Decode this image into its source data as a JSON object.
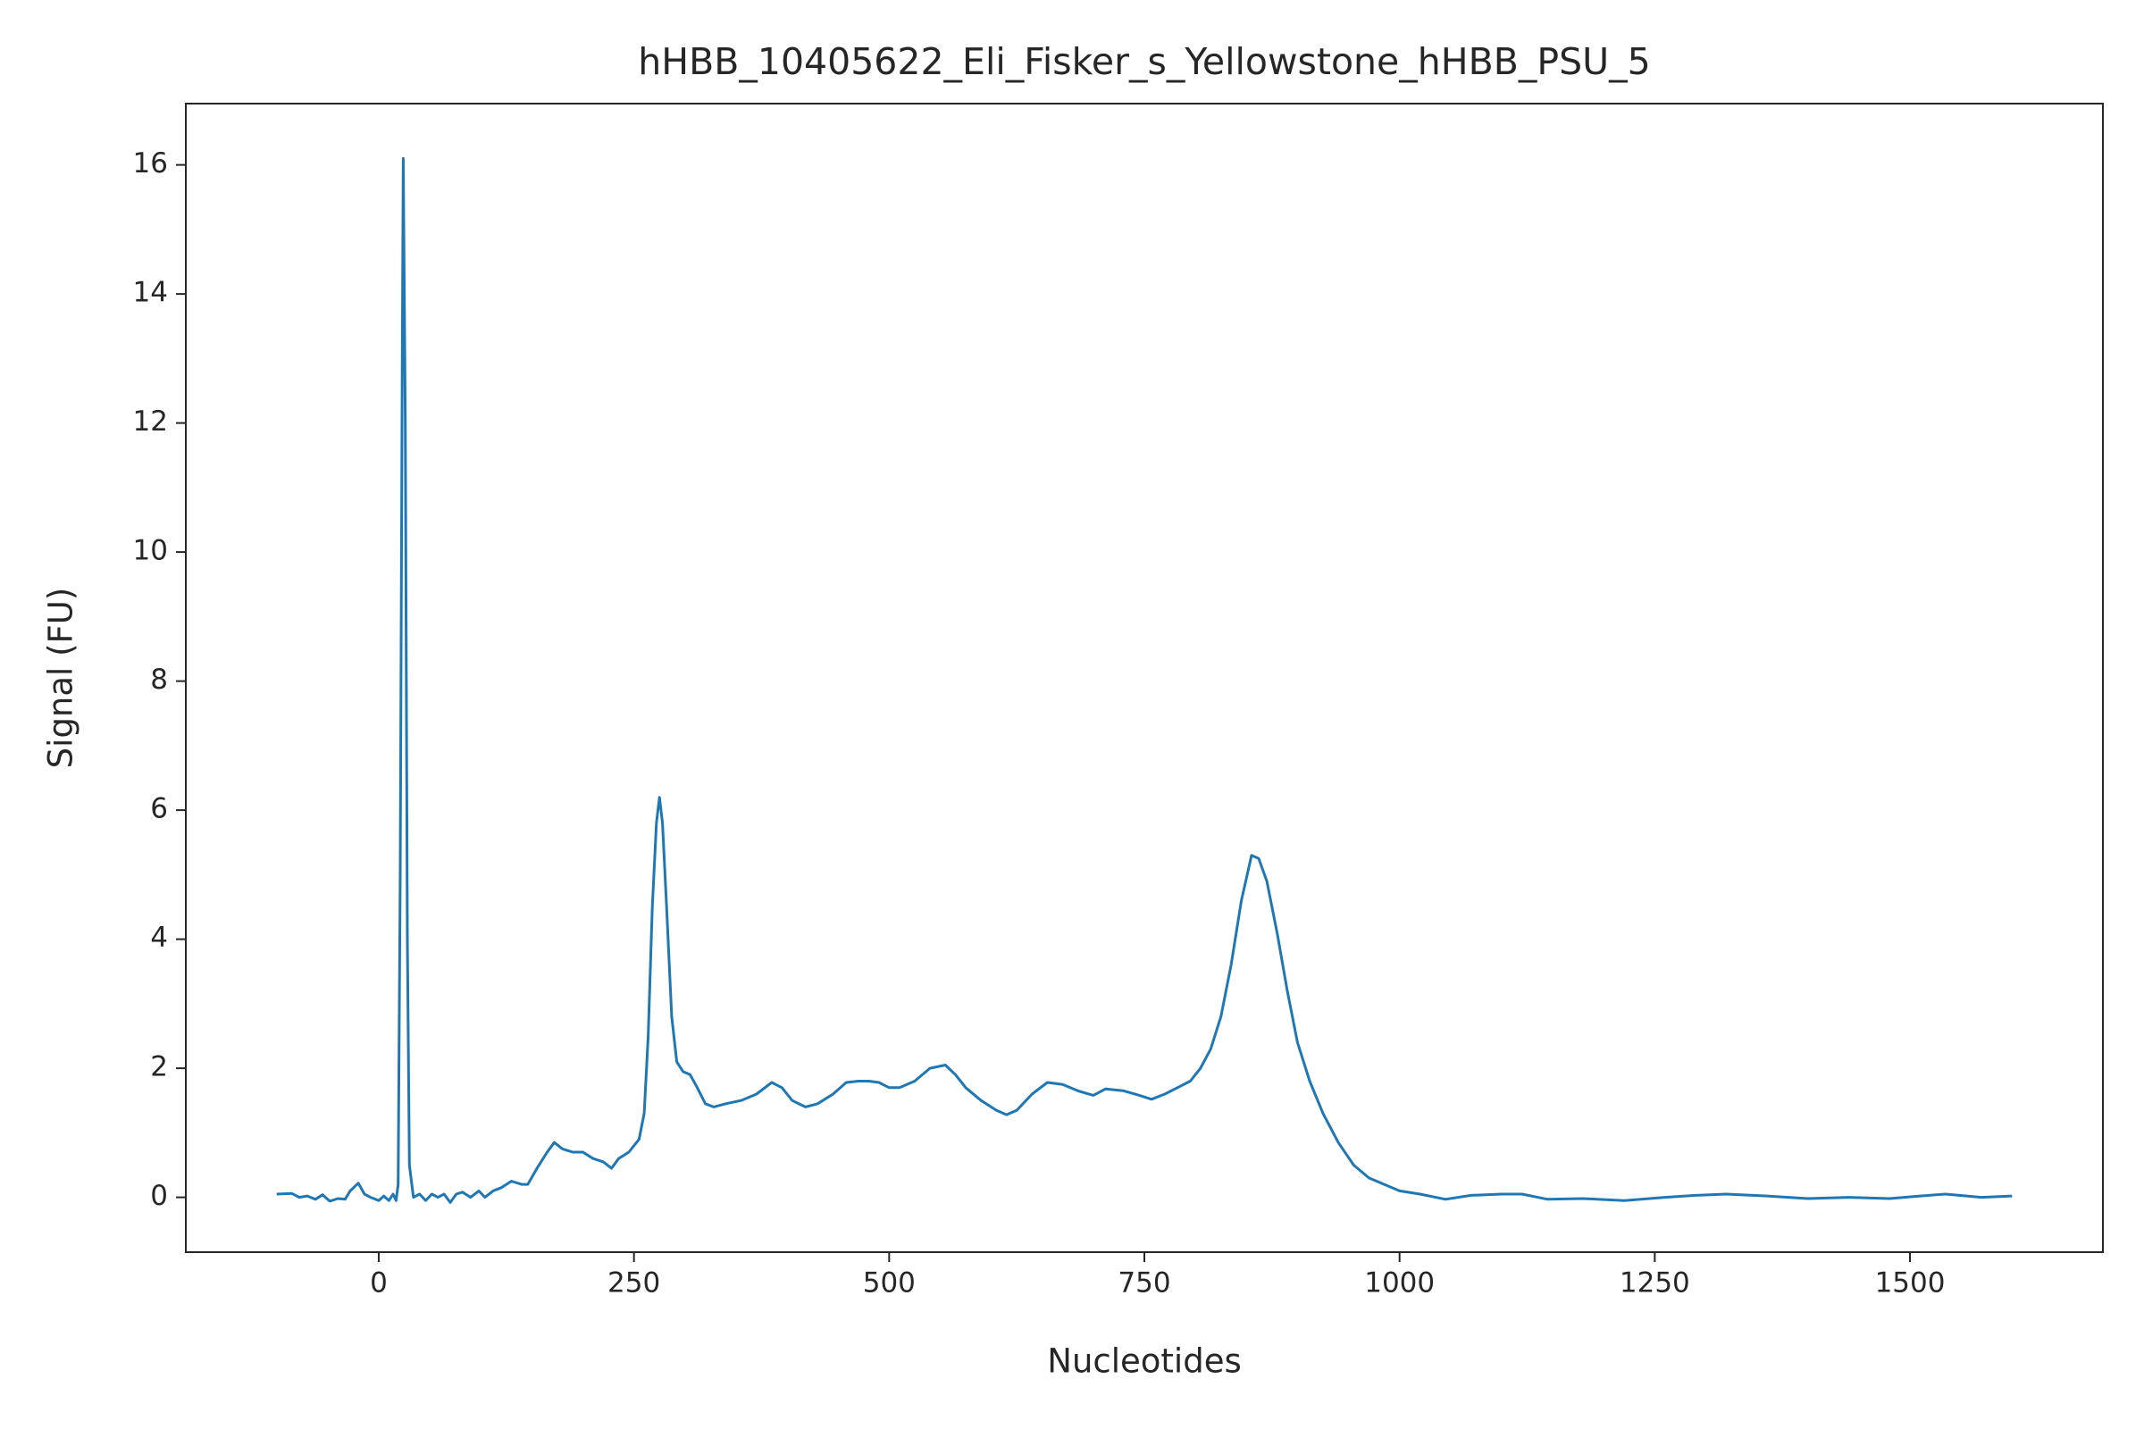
{
  "chart_data": {
    "type": "line",
    "title": "hHBB_10405622_Eli_Fisker_s_Yellowstone_hHBB_PSU_5",
    "xlabel": "Nucleotides",
    "ylabel": "Signal (FU)",
    "x": [
      -100,
      -85,
      -78,
      -70,
      -62,
      -55,
      -48,
      -40,
      -33,
      -28,
      -20,
      -14,
      -8,
      0,
      5,
      10,
      14,
      17,
      19,
      21,
      23,
      24,
      26,
      28,
      30,
      34,
      40,
      46,
      52,
      58,
      64,
      70,
      76,
      82,
      90,
      98,
      104,
      112,
      120,
      130,
      140,
      146,
      155,
      165,
      172,
      180,
      190,
      200,
      210,
      220,
      228,
      235,
      245,
      255,
      260,
      264,
      268,
      272,
      275,
      278,
      282,
      287,
      292,
      298,
      305,
      312,
      320,
      328,
      340,
      355,
      370,
      385,
      395,
      405,
      418,
      430,
      445,
      458,
      470,
      480,
      490,
      500,
      510,
      525,
      540,
      555,
      565,
      575,
      590,
      605,
      615,
      625,
      640,
      655,
      670,
      685,
      700,
      712,
      730,
      745,
      757,
      770,
      785,
      795,
      805,
      815,
      825,
      835,
      845,
      855,
      862,
      870,
      880,
      890,
      900,
      912,
      925,
      940,
      955,
      970,
      985,
      1000,
      1020,
      1045,
      1070,
      1100,
      1120,
      1145,
      1180,
      1220,
      1260,
      1290,
      1320,
      1360,
      1400,
      1440,
      1480,
      1510,
      1535,
      1570,
      1600
    ],
    "series": [
      {
        "name": "signal",
        "color": "#1f77b4",
        "values": [
          0.05,
          0.06,
          0.0,
          0.02,
          -0.03,
          0.04,
          -0.06,
          -0.02,
          -0.03,
          0.1,
          0.22,
          0.05,
          0.0,
          -0.05,
          0.02,
          -0.05,
          0.05,
          -0.05,
          0.2,
          5,
          13,
          16.1,
          12,
          4,
          0.5,
          0.0,
          0.05,
          -0.05,
          0.05,
          0.0,
          0.05,
          -0.08,
          0.05,
          0.08,
          0.0,
          0.1,
          0.0,
          0.1,
          0.15,
          0.25,
          0.2,
          0.2,
          0.45,
          0.7,
          0.85,
          0.75,
          0.7,
          0.7,
          0.6,
          0.55,
          0.45,
          0.6,
          0.7,
          0.9,
          1.3,
          2.5,
          4.5,
          5.8,
          6.2,
          5.8,
          4.5,
          2.8,
          2.1,
          1.95,
          1.9,
          1.7,
          1.45,
          1.4,
          1.45,
          1.5,
          1.6,
          1.78,
          1.7,
          1.5,
          1.4,
          1.45,
          1.6,
          1.78,
          1.8,
          1.8,
          1.78,
          1.7,
          1.7,
          1.8,
          2.0,
          2.05,
          1.9,
          1.7,
          1.5,
          1.35,
          1.28,
          1.35,
          1.6,
          1.78,
          1.75,
          1.65,
          1.58,
          1.68,
          1.65,
          1.58,
          1.52,
          1.6,
          1.72,
          1.8,
          2.0,
          2.3,
          2.8,
          3.6,
          4.6,
          5.3,
          5.25,
          4.9,
          4.1,
          3.2,
          2.4,
          1.8,
          1.3,
          0.85,
          0.5,
          0.3,
          0.2,
          0.1,
          0.05,
          -0.03,
          0.03,
          0.05,
          0.05,
          -0.03,
          -0.02,
          -0.05,
          0.0,
          0.03,
          0.05,
          0.02,
          -0.02,
          0.0,
          -0.02,
          0.02,
          0.05,
          0.0,
          0.02
        ]
      }
    ],
    "xlim": [
      -189,
      1689
    ],
    "ylim": [
      -0.85,
      16.95
    ],
    "xticks": [
      0,
      250,
      500,
      750,
      1000,
      1250,
      1500
    ],
    "yticks": [
      0,
      2,
      4,
      6,
      8,
      10,
      12,
      14,
      16
    ]
  }
}
